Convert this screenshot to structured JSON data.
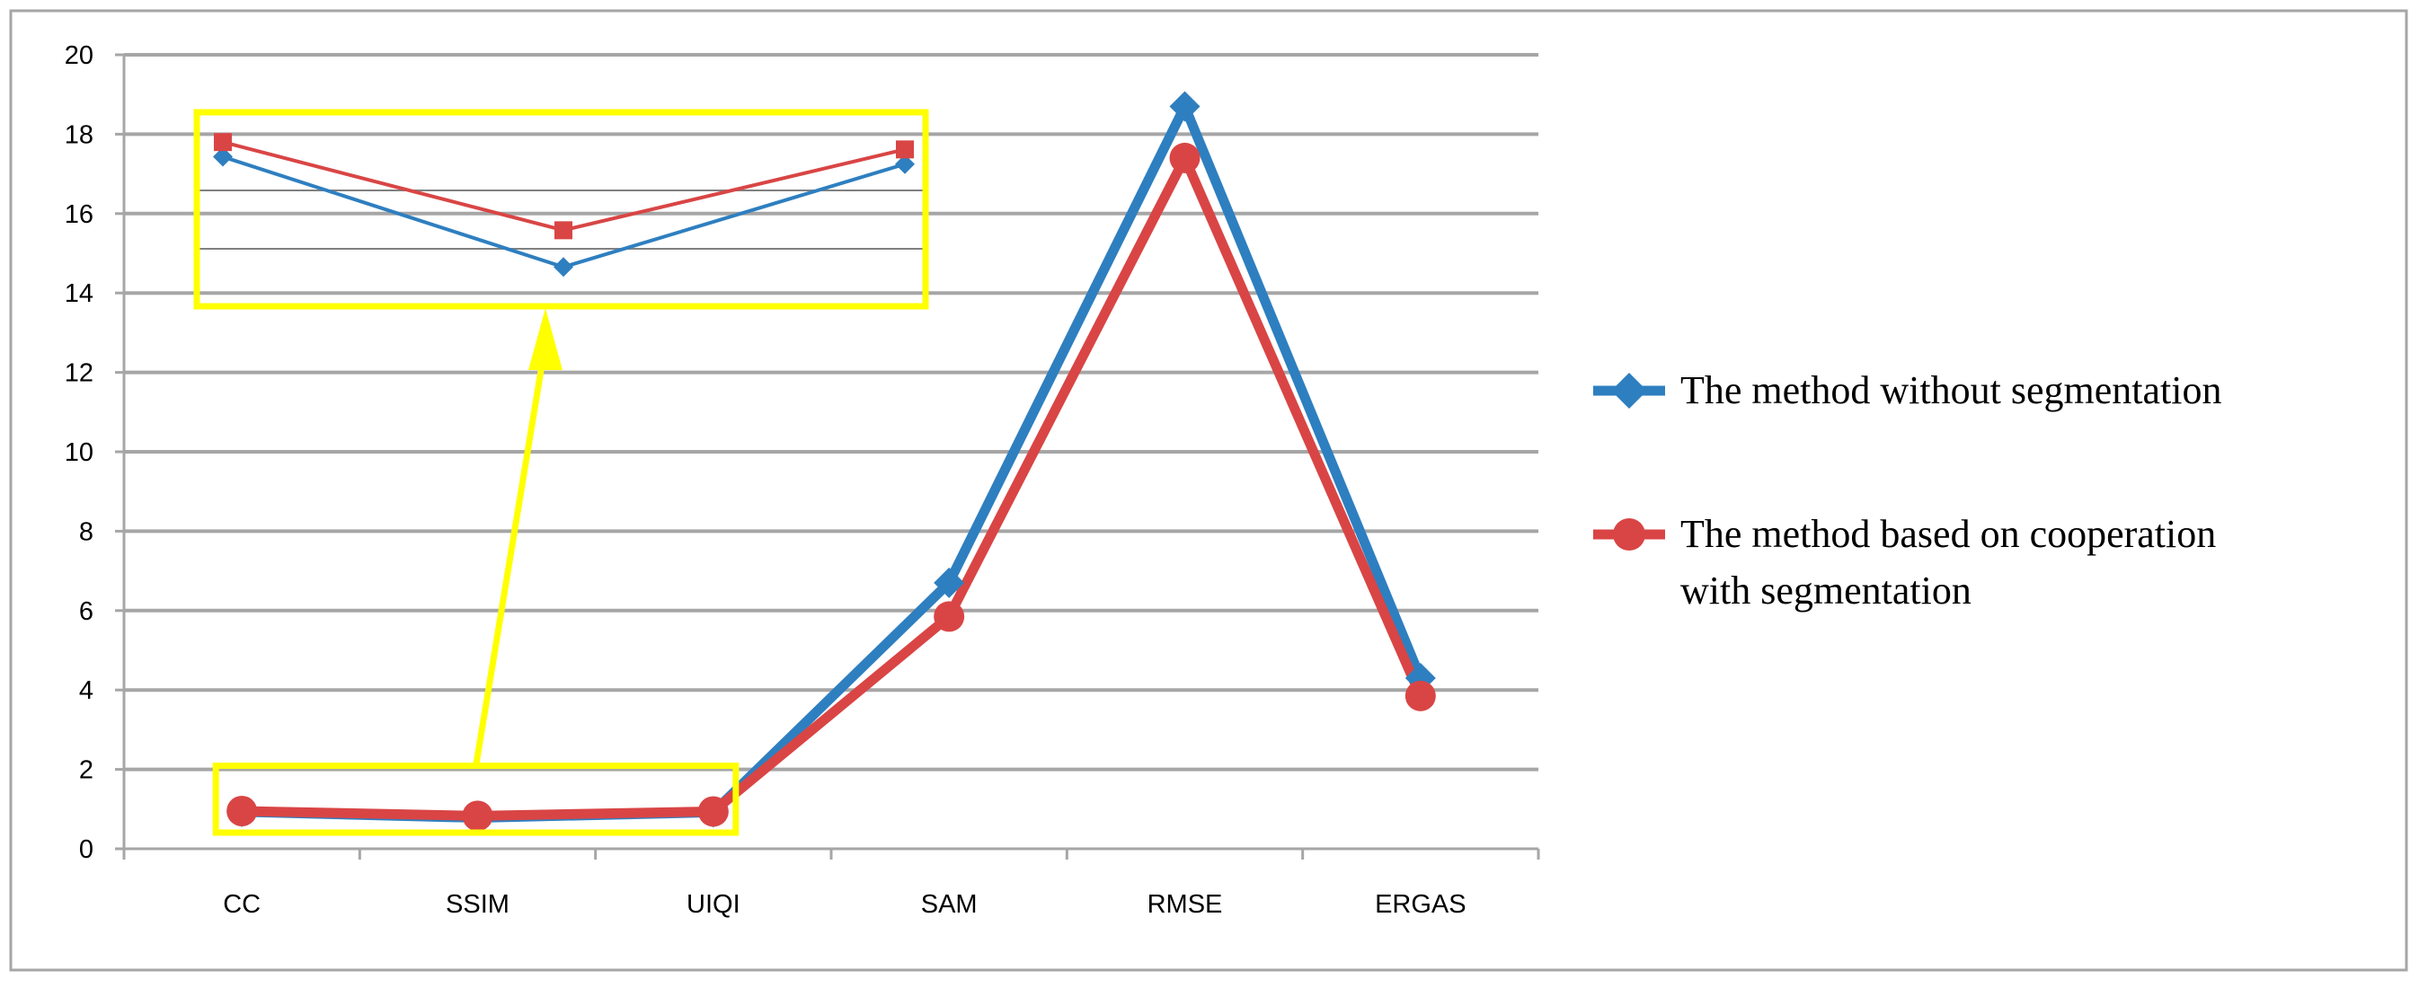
{
  "chart_data": {
    "type": "line",
    "title": "",
    "xlabel": "",
    "ylabel": "",
    "categories": [
      "CC",
      "SSIM",
      "UIQI",
      "SAM",
      "RMSE",
      "ERGAS"
    ],
    "ylim": [
      0,
      20
    ],
    "yticks": [
      0,
      2,
      4,
      6,
      8,
      10,
      12,
      14,
      16,
      18,
      20
    ],
    "grid": true,
    "legend_position": "right",
    "series": [
      {
        "name": "The method without segmentation",
        "values": [
          0.93,
          0.78,
          0.92,
          6.7,
          18.7,
          4.3
        ],
        "color": "#2e7fc0",
        "marker": "diamond"
      },
      {
        "name": "The method based on cooperation with segmentation",
        "values": [
          0.95,
          0.83,
          0.94,
          5.85,
          17.4,
          3.85
        ],
        "color": "#d94545",
        "marker": "circle"
      }
    ],
    "inset": {
      "description": "zoomed view of CC, SSIM, UIQI",
      "categories": [
        "CC",
        "SSIM",
        "UIQI"
      ],
      "highlight_color": "#ffff00"
    }
  },
  "legend": {
    "item1_line1": "The method without segmentation",
    "item2_line1": "The method based on cooperation",
    "item2_line2": "with segmentation"
  }
}
